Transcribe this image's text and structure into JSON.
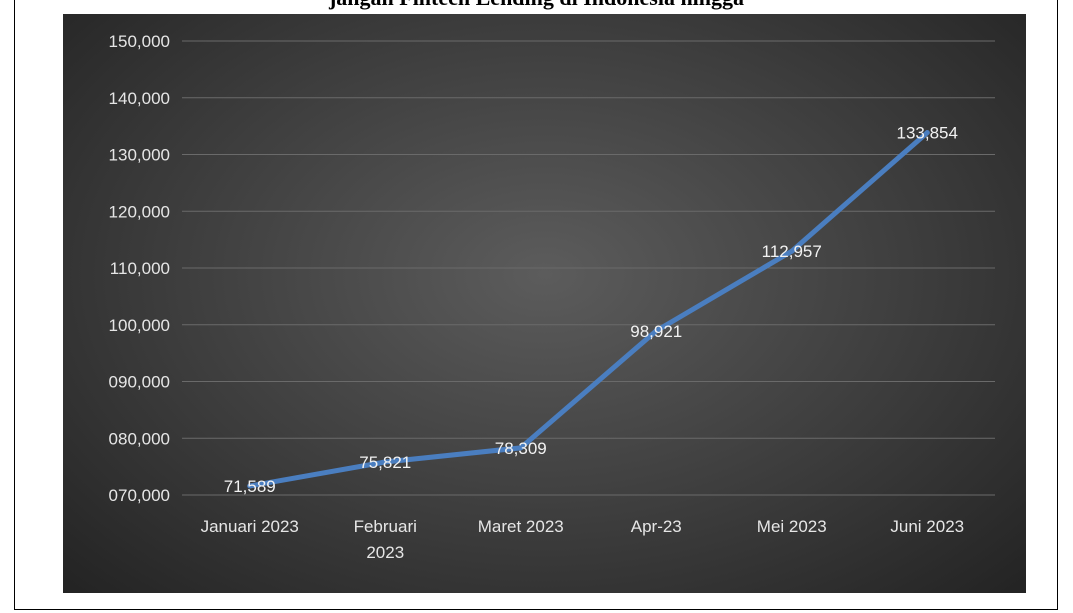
{
  "page": {
    "clipped_title": "jangan Fintech Lending di Indonesia hingga"
  },
  "chart_data": {
    "type": "line",
    "title": "",
    "xlabel": "",
    "ylabel": "",
    "categories": [
      [
        "Januari 2023"
      ],
      [
        "Februari",
        "2023"
      ],
      [
        "Maret 2023"
      ],
      [
        "Apr-23"
      ],
      [
        "Mei 2023"
      ],
      [
        "Juni 2023"
      ]
    ],
    "series": [
      {
        "values": [
          71589,
          75821,
          78309,
          98921,
          112957,
          133854
        ],
        "labels": [
          "71,589",
          "75,821",
          "78,309",
          "98,921",
          "112,957",
          "133,854"
        ],
        "color": "#4a7ec0"
      }
    ],
    "ylim": [
      70000,
      150000
    ],
    "y_ticks": [
      {
        "value": 70000,
        "label": "070,000"
      },
      {
        "value": 80000,
        "label": "080,000"
      },
      {
        "value": 90000,
        "label": "090,000"
      },
      {
        "value": 100000,
        "label": "100,000"
      },
      {
        "value": 110000,
        "label": "110,000"
      },
      {
        "value": 120000,
        "label": "120,000"
      },
      {
        "value": 130000,
        "label": "130,000"
      },
      {
        "value": 140000,
        "label": "140,000"
      },
      {
        "value": 150000,
        "label": "150,000"
      }
    ],
    "grid": true,
    "legend": "none",
    "gridline_color": "#6a6a6a"
  }
}
